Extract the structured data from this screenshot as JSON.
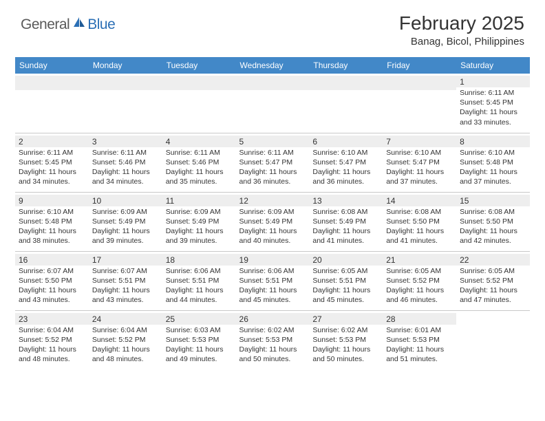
{
  "header": {
    "logo_general": "General",
    "logo_blue": "Blue",
    "month_title": "February 2025",
    "location": "Banag, Bicol, Philippines"
  },
  "colors": {
    "header_bg": "#4288c8",
    "header_text": "#ffffff",
    "band_bg": "#eeeeee",
    "text": "#333333",
    "divider": "#c8c8c8",
    "logo_gray": "#5a5a5a",
    "logo_blue": "#2b6fb5"
  },
  "weekdays": [
    "Sunday",
    "Monday",
    "Tuesday",
    "Wednesday",
    "Thursday",
    "Friday",
    "Saturday"
  ],
  "weeks": [
    [
      null,
      null,
      null,
      null,
      null,
      null,
      {
        "n": "1",
        "sunrise": "6:11 AM",
        "sunset": "5:45 PM",
        "day_h": "11",
        "day_m": "33"
      }
    ],
    [
      {
        "n": "2",
        "sunrise": "6:11 AM",
        "sunset": "5:45 PM",
        "day_h": "11",
        "day_m": "34"
      },
      {
        "n": "3",
        "sunrise": "6:11 AM",
        "sunset": "5:46 PM",
        "day_h": "11",
        "day_m": "34"
      },
      {
        "n": "4",
        "sunrise": "6:11 AM",
        "sunset": "5:46 PM",
        "day_h": "11",
        "day_m": "35"
      },
      {
        "n": "5",
        "sunrise": "6:11 AM",
        "sunset": "5:47 PM",
        "day_h": "11",
        "day_m": "36"
      },
      {
        "n": "6",
        "sunrise": "6:10 AM",
        "sunset": "5:47 PM",
        "day_h": "11",
        "day_m": "36"
      },
      {
        "n": "7",
        "sunrise": "6:10 AM",
        "sunset": "5:47 PM",
        "day_h": "11",
        "day_m": "37"
      },
      {
        "n": "8",
        "sunrise": "6:10 AM",
        "sunset": "5:48 PM",
        "day_h": "11",
        "day_m": "37"
      }
    ],
    [
      {
        "n": "9",
        "sunrise": "6:10 AM",
        "sunset": "5:48 PM",
        "day_h": "11",
        "day_m": "38"
      },
      {
        "n": "10",
        "sunrise": "6:09 AM",
        "sunset": "5:49 PM",
        "day_h": "11",
        "day_m": "39"
      },
      {
        "n": "11",
        "sunrise": "6:09 AM",
        "sunset": "5:49 PM",
        "day_h": "11",
        "day_m": "39"
      },
      {
        "n": "12",
        "sunrise": "6:09 AM",
        "sunset": "5:49 PM",
        "day_h": "11",
        "day_m": "40"
      },
      {
        "n": "13",
        "sunrise": "6:08 AM",
        "sunset": "5:49 PM",
        "day_h": "11",
        "day_m": "41"
      },
      {
        "n": "14",
        "sunrise": "6:08 AM",
        "sunset": "5:50 PM",
        "day_h": "11",
        "day_m": "41"
      },
      {
        "n": "15",
        "sunrise": "6:08 AM",
        "sunset": "5:50 PM",
        "day_h": "11",
        "day_m": "42"
      }
    ],
    [
      {
        "n": "16",
        "sunrise": "6:07 AM",
        "sunset": "5:50 PM",
        "day_h": "11",
        "day_m": "43"
      },
      {
        "n": "17",
        "sunrise": "6:07 AM",
        "sunset": "5:51 PM",
        "day_h": "11",
        "day_m": "43"
      },
      {
        "n": "18",
        "sunrise": "6:06 AM",
        "sunset": "5:51 PM",
        "day_h": "11",
        "day_m": "44"
      },
      {
        "n": "19",
        "sunrise": "6:06 AM",
        "sunset": "5:51 PM",
        "day_h": "11",
        "day_m": "45"
      },
      {
        "n": "20",
        "sunrise": "6:05 AM",
        "sunset": "5:51 PM",
        "day_h": "11",
        "day_m": "45"
      },
      {
        "n": "21",
        "sunrise": "6:05 AM",
        "sunset": "5:52 PM",
        "day_h": "11",
        "day_m": "46"
      },
      {
        "n": "22",
        "sunrise": "6:05 AM",
        "sunset": "5:52 PM",
        "day_h": "11",
        "day_m": "47"
      }
    ],
    [
      {
        "n": "23",
        "sunrise": "6:04 AM",
        "sunset": "5:52 PM",
        "day_h": "11",
        "day_m": "48"
      },
      {
        "n": "24",
        "sunrise": "6:04 AM",
        "sunset": "5:52 PM",
        "day_h": "11",
        "day_m": "48"
      },
      {
        "n": "25",
        "sunrise": "6:03 AM",
        "sunset": "5:53 PM",
        "day_h": "11",
        "day_m": "49"
      },
      {
        "n": "26",
        "sunrise": "6:02 AM",
        "sunset": "5:53 PM",
        "day_h": "11",
        "day_m": "50"
      },
      {
        "n": "27",
        "sunrise": "6:02 AM",
        "sunset": "5:53 PM",
        "day_h": "11",
        "day_m": "50"
      },
      {
        "n": "28",
        "sunrise": "6:01 AM",
        "sunset": "5:53 PM",
        "day_h": "11",
        "day_m": "51"
      },
      null
    ]
  ],
  "labels": {
    "sunrise": "Sunrise:",
    "sunset": "Sunset:",
    "daylight": "Daylight:",
    "hours": "hours",
    "and": "and",
    "minutes": "minutes."
  }
}
